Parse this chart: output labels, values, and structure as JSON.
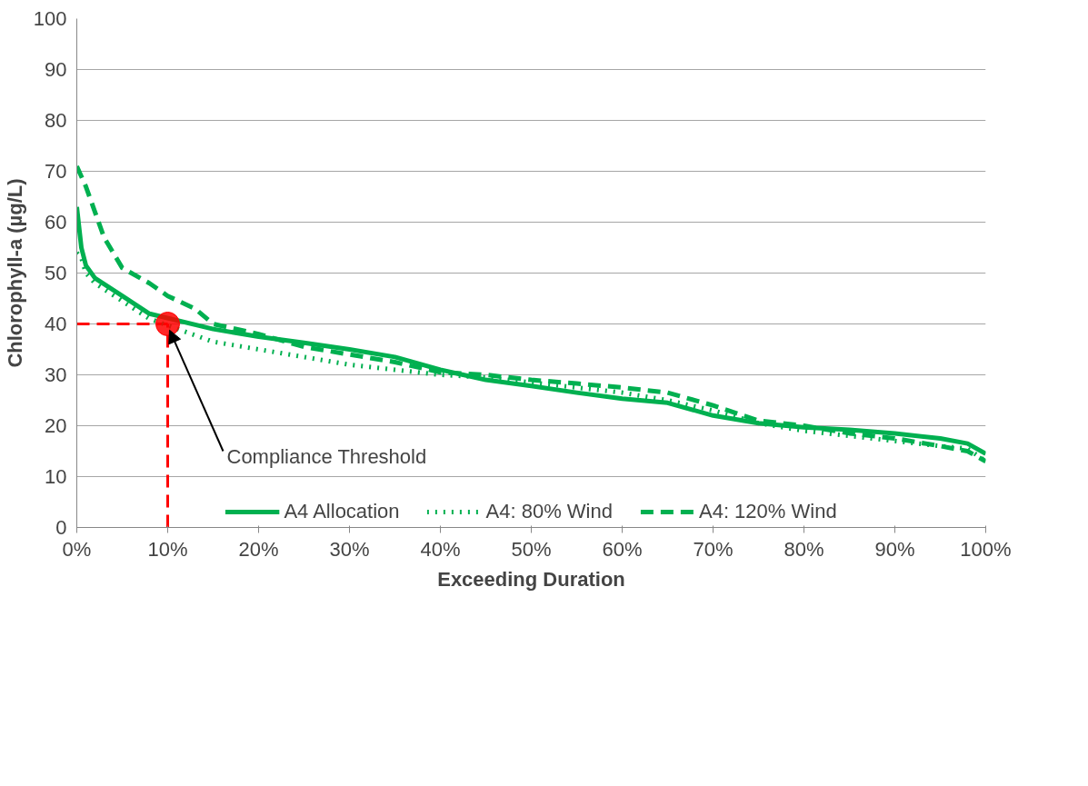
{
  "chart_data": {
    "type": "line",
    "xlabel": "Exceeding Duration",
    "ylabel": "Chlorophyll-a (µg/L)",
    "xlim": [
      0,
      100
    ],
    "ylim": [
      0,
      100
    ],
    "xticks": [
      {
        "value": 0,
        "label": "0%"
      },
      {
        "value": 10,
        "label": "10%"
      },
      {
        "value": 20,
        "label": "20%"
      },
      {
        "value": 30,
        "label": "30%"
      },
      {
        "value": 40,
        "label": "40%"
      },
      {
        "value": 50,
        "label": "50%"
      },
      {
        "value": 60,
        "label": "60%"
      },
      {
        "value": 70,
        "label": "70%"
      },
      {
        "value": 80,
        "label": "80%"
      },
      {
        "value": 90,
        "label": "90%"
      },
      {
        "value": 100,
        "label": "100%"
      }
    ],
    "yticks": [
      0,
      10,
      20,
      30,
      40,
      50,
      60,
      70,
      80,
      90,
      100
    ],
    "grid": "y",
    "legend": "bottom",
    "marker": "none",
    "series": [
      {
        "name": "A4 Allocation",
        "color": "#00b050",
        "line_style": "solid",
        "x": [
          0,
          0.5,
          1,
          2,
          5,
          8,
          15,
          20,
          25,
          30,
          35,
          40,
          45,
          50,
          55,
          60,
          65,
          70,
          75,
          80,
          85,
          90,
          95,
          98,
          100
        ],
        "values": [
          63,
          55,
          51.5,
          49,
          45.5,
          42,
          39,
          37.5,
          36.3,
          35,
          33.5,
          31,
          29,
          27.8,
          26.5,
          25.3,
          24.5,
          22,
          20.5,
          19.7,
          19.2,
          18.5,
          17.5,
          16.5,
          14.5
        ]
      },
      {
        "name": "A4: 80% Wind",
        "color": "#00b050",
        "line_style": "dotted",
        "x": [
          0,
          0.5,
          1,
          2,
          5,
          8,
          15,
          20,
          25,
          30,
          35,
          40,
          45,
          50,
          55,
          60,
          65,
          70,
          75,
          80,
          85,
          90,
          95,
          98,
          100
        ],
        "values": [
          54,
          53,
          50,
          48,
          44.5,
          41,
          36.5,
          35,
          33.5,
          32,
          31,
          30,
          29.5,
          28.5,
          27.5,
          26.5,
          25,
          23,
          20.5,
          19,
          18,
          17,
          16,
          15.5,
          13
        ]
      },
      {
        "name": "A4: 120% Wind",
        "color": "#00b050",
        "line_style": "dashed",
        "x": [
          0,
          1,
          3,
          5,
          8,
          10,
          13,
          15,
          20,
          25,
          30,
          35,
          40,
          45,
          50,
          55,
          60,
          65,
          70,
          75,
          80,
          85,
          90,
          95,
          98,
          100
        ],
        "values": [
          71,
          67,
          57,
          51,
          48,
          45.5,
          43,
          40,
          38,
          35.5,
          34,
          32.5,
          30.5,
          30,
          29,
          28.3,
          27.5,
          26.5,
          24,
          21,
          20,
          18.5,
          17.5,
          16,
          15,
          13
        ]
      },
      {
        "type": "scatter",
        "color": "#ff0000",
        "marker": "circle",
        "x": [
          10
        ],
        "values": [
          40
        ]
      }
    ],
    "ref_lines": [
      {
        "axis": "x",
        "value": 10,
        "color": "#ff0000",
        "line_style": "dashed"
      },
      {
        "axis": "y",
        "value": 40,
        "color": "#ff0000",
        "line_style": "dashed"
      }
    ],
    "annotations": [
      {
        "text": "Compliance Threshold",
        "x": 10,
        "y": 40
      }
    ]
  }
}
